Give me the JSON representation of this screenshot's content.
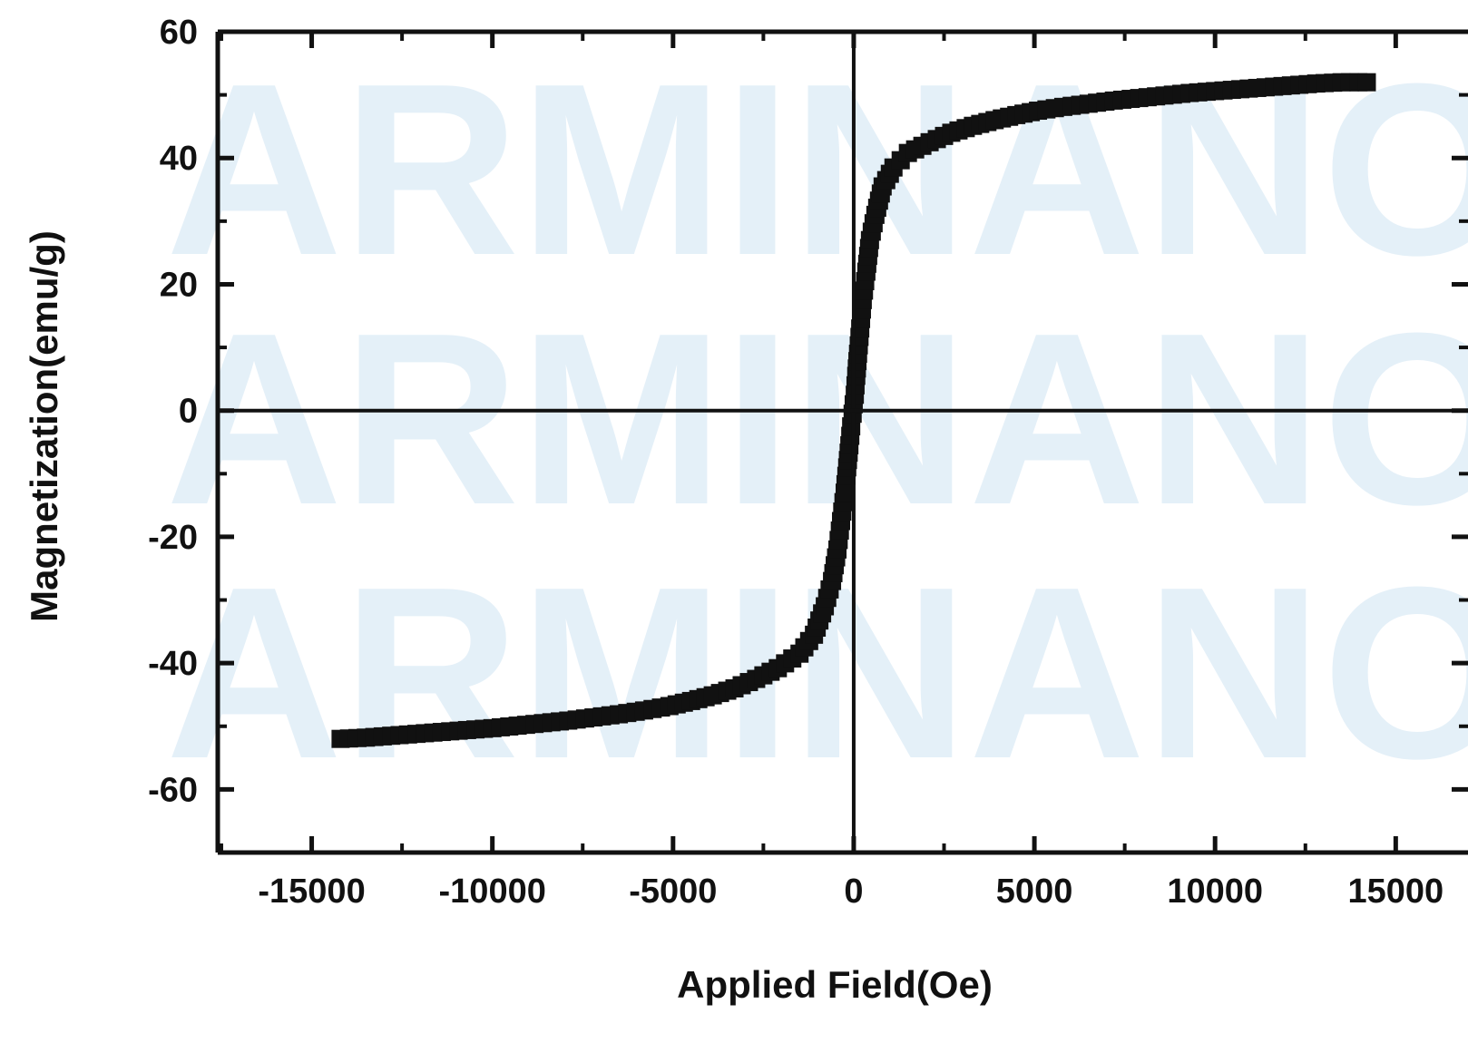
{
  "watermark": {
    "text": "ARMINANO",
    "color": "#dcebf6"
  },
  "chart_data": {
    "type": "scatter",
    "title": "",
    "xlabel": "Applied Field(Oe)",
    "ylabel": "Magnetization(emu/g)",
    "xlim": [
      -17600,
      17000
    ],
    "ylim": [
      -70,
      60
    ],
    "xticks": [
      -15000,
      -10000,
      -5000,
      0,
      5000,
      10000,
      15000
    ],
    "yticks": [
      -60,
      -40,
      -20,
      0,
      20,
      40,
      60
    ],
    "grid": false,
    "legend": "none",
    "marker": "square",
    "color": "#111111",
    "series": [
      {
        "x": [
          -14200,
          -13500,
          -12800,
          -12100,
          -11400,
          -10700,
          -10000,
          -9300,
          -8600,
          -7900,
          -7200,
          -6500,
          -5800,
          -5100,
          -4500,
          -3900,
          -3300,
          -2700,
          -2100,
          -1500,
          -1100,
          -800,
          -600,
          -450,
          -350,
          -250,
          -180,
          -120,
          -70,
          -30,
          0,
          30,
          70,
          120,
          180,
          250,
          350,
          450,
          600,
          800,
          1100,
          1500,
          2100,
          2700,
          3300,
          3900,
          4500,
          5100,
          5800,
          6500,
          7200,
          7900,
          8600,
          9300,
          10000,
          10700,
          11400,
          12100,
          12800,
          13500,
          14200
        ],
        "y": [
          -52,
          -51.8,
          -51.5,
          -51.2,
          -50.9,
          -50.6,
          -50.3,
          -49.9,
          -49.5,
          -49.1,
          -48.6,
          -48.1,
          -47.5,
          -46.8,
          -46,
          -45.1,
          -44,
          -42.5,
          -40.8,
          -38.5,
          -35.5,
          -31,
          -27,
          -22,
          -17.5,
          -13,
          -9,
          -5.5,
          -2.5,
          -0.5,
          1,
          2.5,
          5.5,
          9,
          13,
          17.5,
          22,
          27,
          31,
          35.5,
          38.5,
          40.8,
          42.5,
          44,
          45.1,
          46,
          46.8,
          47.5,
          48.1,
          48.6,
          49.1,
          49.5,
          49.9,
          50.3,
          50.6,
          50.9,
          51.2,
          51.5,
          51.8,
          52,
          52
        ]
      }
    ]
  }
}
